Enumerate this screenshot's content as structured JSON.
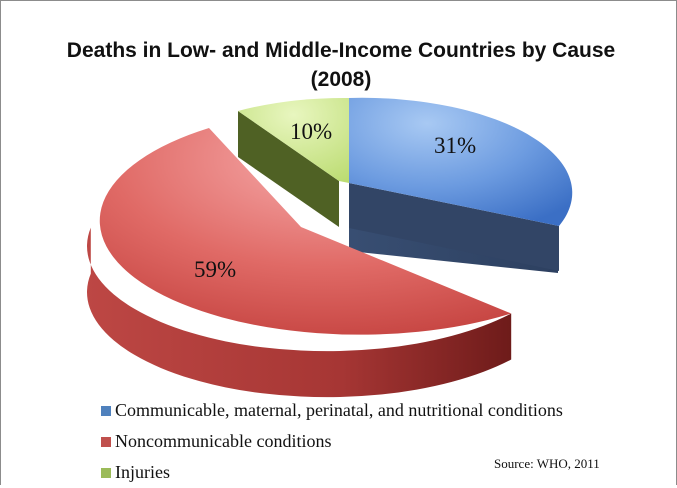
{
  "chart_data": {
    "type": "pie",
    "title": "Deaths in Low- and Middle-Income Countries by Cause (2008)",
    "slices": [
      {
        "label": "Communicable, maternal, perinatal, and nutritional conditions",
        "value": 31,
        "value_label": "31%",
        "color": "#4f81bd"
      },
      {
        "label": "Noncommunicable conditions",
        "value": 59,
        "value_label": "59%",
        "color": "#c0504d"
      },
      {
        "label": "Injuries",
        "value": 10,
        "value_label": "10%",
        "color": "#9bbb59"
      }
    ],
    "legend_position": "bottom-left",
    "source": "Source: WHO, 2011"
  }
}
